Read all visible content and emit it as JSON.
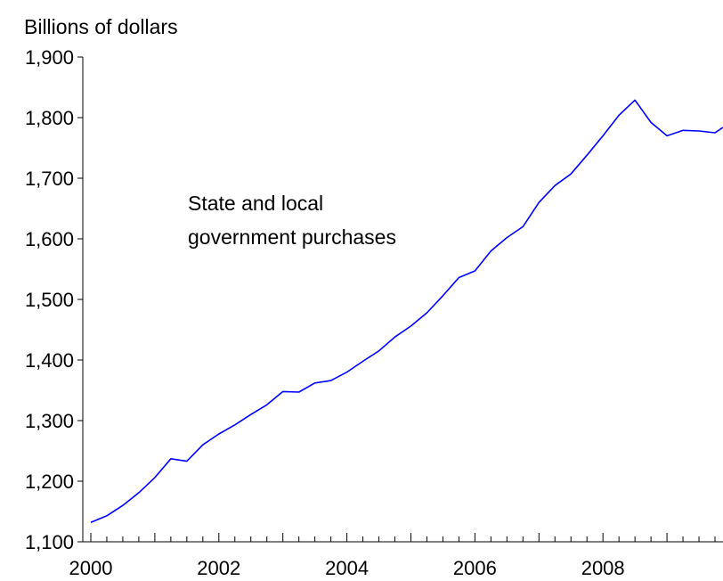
{
  "chart_data": {
    "type": "line",
    "ylabel": "Billions of dollars",
    "annotation": [
      "State and local",
      "government purchases"
    ],
    "ylim": [
      1100,
      1900
    ],
    "yticks": [
      1100,
      1200,
      1300,
      1400,
      1500,
      1600,
      1700,
      1800,
      1900
    ],
    "ytick_labels": [
      "1,100",
      "1,200",
      "1,300",
      "1,400",
      "1,500",
      "1,600",
      "1,700",
      "1,800",
      "1,900"
    ],
    "xlim": [
      2000.0,
      2010.0
    ],
    "xtick_labels": [
      {
        "x": 2000.125,
        "label": "2000"
      },
      {
        "x": 2002.125,
        "label": "2002"
      },
      {
        "x": 2004.125,
        "label": "2004"
      },
      {
        "x": 2006.125,
        "label": "2006"
      },
      {
        "x": 2008.125,
        "label": "2008"
      }
    ],
    "grid": false,
    "series": [
      {
        "color": "#0000ff",
        "x": [
          2000.125,
          2000.375,
          2000.625,
          2000.875,
          2001.125,
          2001.375,
          2001.625,
          2001.875,
          2002.125,
          2002.375,
          2002.625,
          2002.875,
          2003.125,
          2003.375,
          2003.625,
          2003.875,
          2004.125,
          2004.375,
          2004.625,
          2004.875,
          2005.125,
          2005.375,
          2005.625,
          2005.875,
          2006.125,
          2006.375,
          2006.625,
          2006.875,
          2007.125,
          2007.375,
          2007.625,
          2007.875,
          2008.125,
          2008.375,
          2008.625,
          2008.875,
          2009.125,
          2009.375,
          2009.625,
          2009.875,
          2010.0
        ],
        "values": [
          1132,
          1143,
          1160,
          1181,
          1206,
          1237,
          1233,
          1260,
          1278,
          1293,
          1310,
          1326,
          1348,
          1347,
          1362,
          1366,
          1380,
          1398,
          1415,
          1438,
          1456,
          1478,
          1506,
          1536,
          1547,
          1580,
          1602,
          1620,
          1660,
          1688,
          1707,
          1738,
          1770,
          1804,
          1829,
          1792,
          1770,
          1779,
          1778,
          1775,
          1784
        ]
      }
    ]
  }
}
